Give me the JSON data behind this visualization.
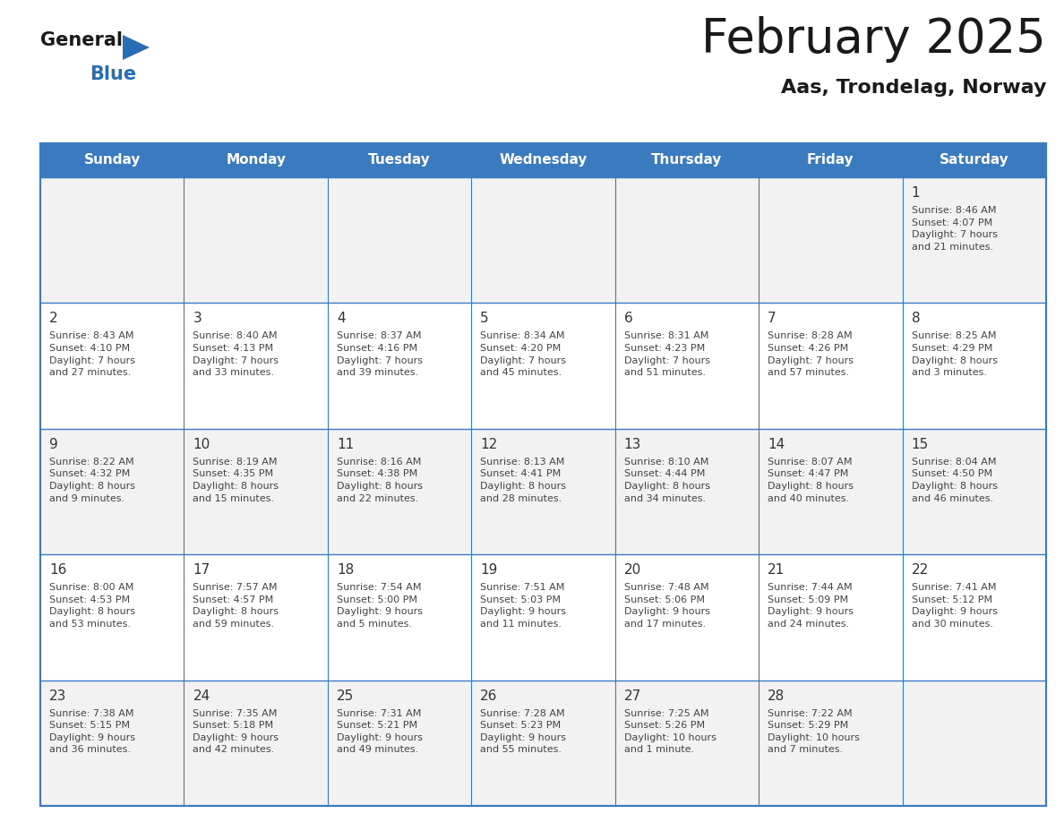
{
  "title": "February 2025",
  "subtitle": "Aas, Trondelag, Norway",
  "header_bg_color": "#3a7abf",
  "header_text_color": "#ffffff",
  "cell_bg_color_odd": "#f2f2f2",
  "cell_bg_color_even": "#ffffff",
  "day_number_color": "#333333",
  "day_info_color": "#444444",
  "grid_color": "#3a7abf",
  "days_of_week": [
    "Sunday",
    "Monday",
    "Tuesday",
    "Wednesday",
    "Thursday",
    "Friday",
    "Saturday"
  ],
  "weeks": [
    [
      {
        "day": null,
        "info": null
      },
      {
        "day": null,
        "info": null
      },
      {
        "day": null,
        "info": null
      },
      {
        "day": null,
        "info": null
      },
      {
        "day": null,
        "info": null
      },
      {
        "day": null,
        "info": null
      },
      {
        "day": "1",
        "info": "Sunrise: 8:46 AM\nSunset: 4:07 PM\nDaylight: 7 hours\nand 21 minutes."
      }
    ],
    [
      {
        "day": "2",
        "info": "Sunrise: 8:43 AM\nSunset: 4:10 PM\nDaylight: 7 hours\nand 27 minutes."
      },
      {
        "day": "3",
        "info": "Sunrise: 8:40 AM\nSunset: 4:13 PM\nDaylight: 7 hours\nand 33 minutes."
      },
      {
        "day": "4",
        "info": "Sunrise: 8:37 AM\nSunset: 4:16 PM\nDaylight: 7 hours\nand 39 minutes."
      },
      {
        "day": "5",
        "info": "Sunrise: 8:34 AM\nSunset: 4:20 PM\nDaylight: 7 hours\nand 45 minutes."
      },
      {
        "day": "6",
        "info": "Sunrise: 8:31 AM\nSunset: 4:23 PM\nDaylight: 7 hours\nand 51 minutes."
      },
      {
        "day": "7",
        "info": "Sunrise: 8:28 AM\nSunset: 4:26 PM\nDaylight: 7 hours\nand 57 minutes."
      },
      {
        "day": "8",
        "info": "Sunrise: 8:25 AM\nSunset: 4:29 PM\nDaylight: 8 hours\nand 3 minutes."
      }
    ],
    [
      {
        "day": "9",
        "info": "Sunrise: 8:22 AM\nSunset: 4:32 PM\nDaylight: 8 hours\nand 9 minutes."
      },
      {
        "day": "10",
        "info": "Sunrise: 8:19 AM\nSunset: 4:35 PM\nDaylight: 8 hours\nand 15 minutes."
      },
      {
        "day": "11",
        "info": "Sunrise: 8:16 AM\nSunset: 4:38 PM\nDaylight: 8 hours\nand 22 minutes."
      },
      {
        "day": "12",
        "info": "Sunrise: 8:13 AM\nSunset: 4:41 PM\nDaylight: 8 hours\nand 28 minutes."
      },
      {
        "day": "13",
        "info": "Sunrise: 8:10 AM\nSunset: 4:44 PM\nDaylight: 8 hours\nand 34 minutes."
      },
      {
        "day": "14",
        "info": "Sunrise: 8:07 AM\nSunset: 4:47 PM\nDaylight: 8 hours\nand 40 minutes."
      },
      {
        "day": "15",
        "info": "Sunrise: 8:04 AM\nSunset: 4:50 PM\nDaylight: 8 hours\nand 46 minutes."
      }
    ],
    [
      {
        "day": "16",
        "info": "Sunrise: 8:00 AM\nSunset: 4:53 PM\nDaylight: 8 hours\nand 53 minutes."
      },
      {
        "day": "17",
        "info": "Sunrise: 7:57 AM\nSunset: 4:57 PM\nDaylight: 8 hours\nand 59 minutes."
      },
      {
        "day": "18",
        "info": "Sunrise: 7:54 AM\nSunset: 5:00 PM\nDaylight: 9 hours\nand 5 minutes."
      },
      {
        "day": "19",
        "info": "Sunrise: 7:51 AM\nSunset: 5:03 PM\nDaylight: 9 hours\nand 11 minutes."
      },
      {
        "day": "20",
        "info": "Sunrise: 7:48 AM\nSunset: 5:06 PM\nDaylight: 9 hours\nand 17 minutes."
      },
      {
        "day": "21",
        "info": "Sunrise: 7:44 AM\nSunset: 5:09 PM\nDaylight: 9 hours\nand 24 minutes."
      },
      {
        "day": "22",
        "info": "Sunrise: 7:41 AM\nSunset: 5:12 PM\nDaylight: 9 hours\nand 30 minutes."
      }
    ],
    [
      {
        "day": "23",
        "info": "Sunrise: 7:38 AM\nSunset: 5:15 PM\nDaylight: 9 hours\nand 36 minutes."
      },
      {
        "day": "24",
        "info": "Sunrise: 7:35 AM\nSunset: 5:18 PM\nDaylight: 9 hours\nand 42 minutes."
      },
      {
        "day": "25",
        "info": "Sunrise: 7:31 AM\nSunset: 5:21 PM\nDaylight: 9 hours\nand 49 minutes."
      },
      {
        "day": "26",
        "info": "Sunrise: 7:28 AM\nSunset: 5:23 PM\nDaylight: 9 hours\nand 55 minutes."
      },
      {
        "day": "27",
        "info": "Sunrise: 7:25 AM\nSunset: 5:26 PM\nDaylight: 10 hours\nand 1 minute."
      },
      {
        "day": "28",
        "info": "Sunrise: 7:22 AM\nSunset: 5:29 PM\nDaylight: 10 hours\nand 7 minutes."
      },
      {
        "day": null,
        "info": null
      }
    ]
  ],
  "logo_color_general": "#1a1a1a",
  "logo_color_blue": "#2a6db5",
  "logo_triangle_color": "#2a6db5",
  "title_fontsize": 38,
  "subtitle_fontsize": 16,
  "header_fontsize": 11,
  "day_num_fontsize": 11,
  "day_info_fontsize": 8
}
